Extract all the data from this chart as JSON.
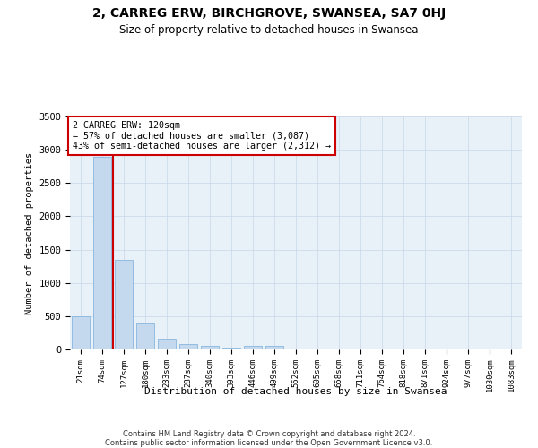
{
  "title": "2, CARREG ERW, BIRCHGROVE, SWANSEA, SA7 0HJ",
  "subtitle": "Size of property relative to detached houses in Swansea",
  "xlabel": "Distribution of detached houses by size in Swansea",
  "ylabel": "Number of detached properties",
  "categories": [
    "21sqm",
    "74sqm",
    "127sqm",
    "180sqm",
    "233sqm",
    "287sqm",
    "340sqm",
    "393sqm",
    "446sqm",
    "499sqm",
    "552sqm",
    "605sqm",
    "658sqm",
    "711sqm",
    "764sqm",
    "818sqm",
    "871sqm",
    "924sqm",
    "977sqm",
    "1030sqm",
    "1083sqm"
  ],
  "values": [
    500,
    2900,
    1350,
    390,
    160,
    80,
    55,
    30,
    55,
    50,
    0,
    0,
    0,
    0,
    0,
    0,
    0,
    0,
    0,
    0,
    0
  ],
  "bar_color": "#c5d9ee",
  "bar_edgecolor": "#7aacda",
  "redline_x": 1.5,
  "annotation_text": "2 CARREG ERW: 120sqm\n← 57% of detached houses are smaller (3,087)\n43% of semi-detached houses are larger (2,312) →",
  "annotation_box_color": "#ffffff",
  "annotation_box_edgecolor": "#cc0000",
  "redline_color": "#cc0000",
  "ylim": [
    0,
    3500
  ],
  "yticks": [
    0,
    500,
    1000,
    1500,
    2000,
    2500,
    3000,
    3500
  ],
  "footer_line1": "Contains HM Land Registry data © Crown copyright and database right 2024.",
  "footer_line2": "Contains public sector information licensed under the Open Government Licence v3.0.",
  "background_color": "#ffffff",
  "grid_color": "#c8d8e8"
}
